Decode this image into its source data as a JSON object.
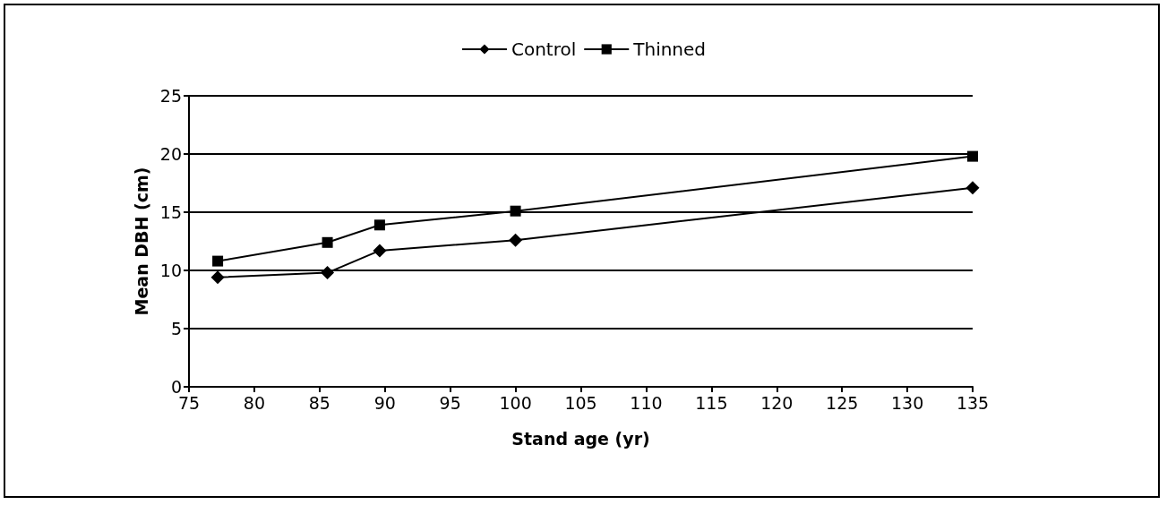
{
  "chart_data": {
    "type": "line",
    "xlabel": "Stand age (yr)",
    "ylabel": "Mean DBH (cm)",
    "x": [
      77.2,
      85.6,
      89.6,
      100,
      135
    ],
    "series": [
      {
        "name": "Control",
        "color": "#000000",
        "marker": "diamond",
        "values": [
          9.4,
          9.8,
          11.7,
          12.6,
          17.1
        ]
      },
      {
        "name": "Thinned",
        "color": "#000000",
        "marker": "square",
        "values": [
          10.8,
          12.4,
          13.9,
          15.1,
          19.8
        ]
      }
    ],
    "xlim": [
      75,
      135
    ],
    "xticks": [
      75,
      80,
      85,
      90,
      95,
      100,
      105,
      110,
      115,
      120,
      125,
      130,
      135
    ],
    "ylim": [
      0,
      25
    ],
    "yticks": [
      0,
      5,
      10,
      15,
      20,
      25
    ],
    "grid": "y",
    "legend": "top",
    "line_style": "solid"
  }
}
